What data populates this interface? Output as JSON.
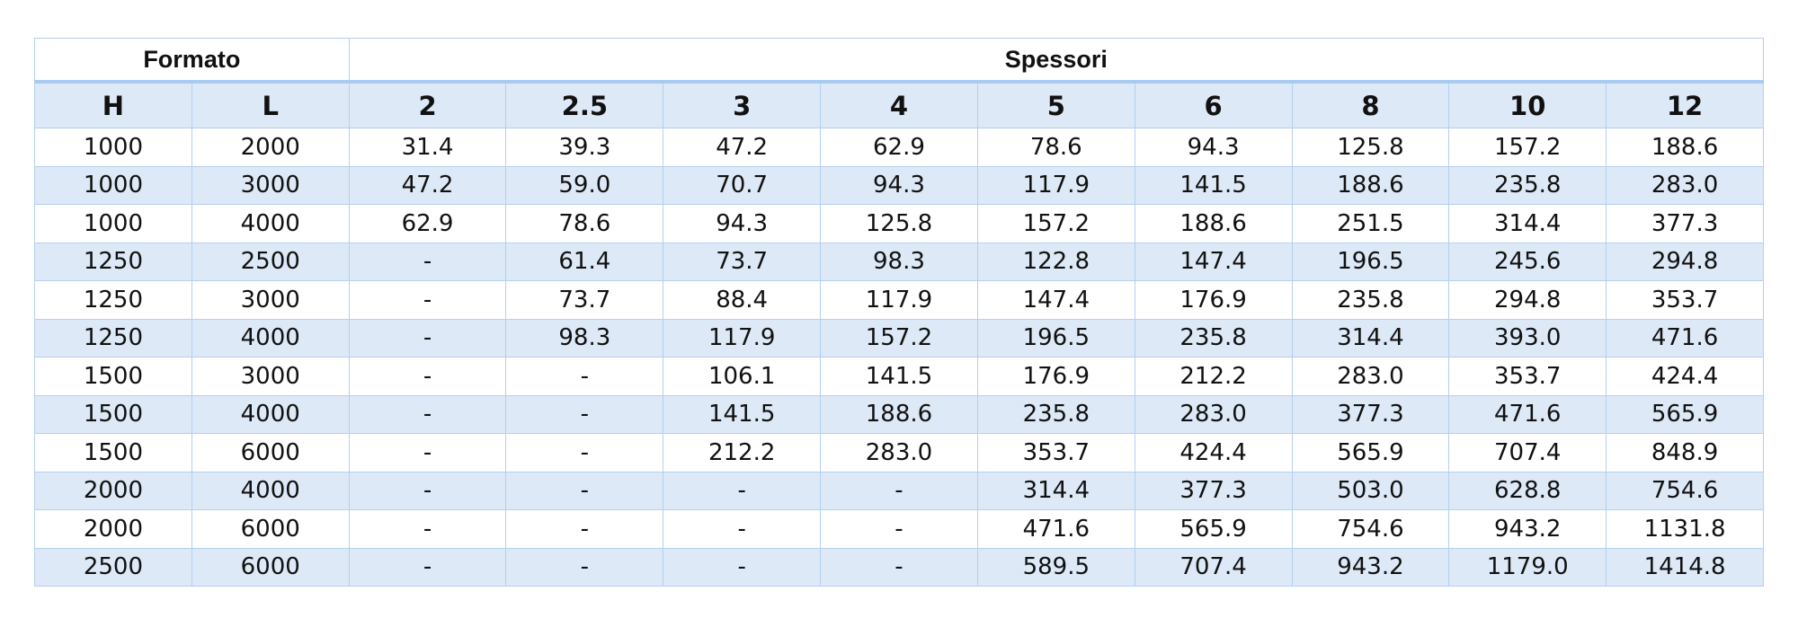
{
  "table": {
    "group_headers": [
      "Formato",
      "Spessori"
    ],
    "columns": [
      "H",
      "L",
      "2",
      "2.5",
      "3",
      "4",
      "5",
      "6",
      "8",
      "10",
      "12"
    ],
    "rows": [
      [
        "1000",
        "2000",
        "31.4",
        "39.3",
        "47.2",
        "62.9",
        "78.6",
        "94.3",
        "125.8",
        "157.2",
        "188.6"
      ],
      [
        "1000",
        "3000",
        "47.2",
        "59.0",
        "70.7",
        "94.3",
        "117.9",
        "141.5",
        "188.6",
        "235.8",
        "283.0"
      ],
      [
        "1000",
        "4000",
        "62.9",
        "78.6",
        "94.3",
        "125.8",
        "157.2",
        "188.6",
        "251.5",
        "314.4",
        "377.3"
      ],
      [
        "1250",
        "2500",
        "-",
        "61.4",
        "73.7",
        "98.3",
        "122.8",
        "147.4",
        "196.5",
        "245.6",
        "294.8"
      ],
      [
        "1250",
        "3000",
        "-",
        "73.7",
        "88.4",
        "117.9",
        "147.4",
        "176.9",
        "235.8",
        "294.8",
        "353.7"
      ],
      [
        "1250",
        "4000",
        "-",
        "98.3",
        "117.9",
        "157.2",
        "196.5",
        "235.8",
        "314.4",
        "393.0",
        "471.6"
      ],
      [
        "1500",
        "3000",
        "-",
        "-",
        "106.1",
        "141.5",
        "176.9",
        "212.2",
        "283.0",
        "353.7",
        "424.4"
      ],
      [
        "1500",
        "4000",
        "-",
        "-",
        "141.5",
        "188.6",
        "235.8",
        "283.0",
        "377.3",
        "471.6",
        "565.9"
      ],
      [
        "1500",
        "6000",
        "-",
        "-",
        "212.2",
        "283.0",
        "353.7",
        "424.4",
        "565.9",
        "707.4",
        "848.9"
      ],
      [
        "2000",
        "4000",
        "-",
        "-",
        "-",
        "-",
        "314.4",
        "377.3",
        "503.0",
        "628.8",
        "754.6"
      ],
      [
        "2000",
        "6000",
        "-",
        "-",
        "-",
        "-",
        "471.6",
        "565.9",
        "754.6",
        "943.2",
        "1131.8"
      ],
      [
        "2500",
        "6000",
        "-",
        "-",
        "-",
        "-",
        "589.5",
        "707.4",
        "943.2",
        "1179.0",
        "1414.8"
      ]
    ]
  }
}
